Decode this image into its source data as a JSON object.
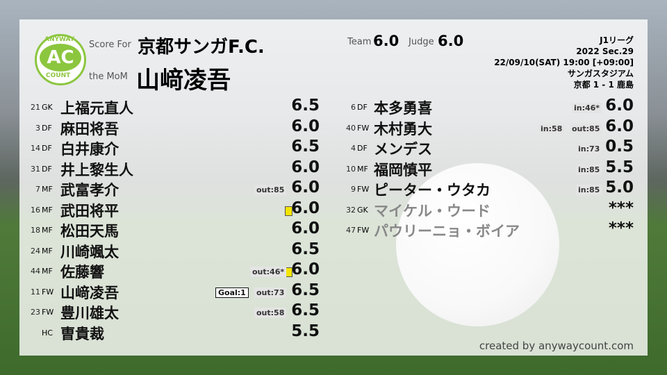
{
  "header": {
    "logo_top": "ANYWAY",
    "logo_mid": "AC",
    "logo_bottom": "COUNT",
    "score_for": "Score For",
    "team": "京都サンガF.C.",
    "mom_label": "the MoM",
    "mom": "山﨑凌吾",
    "team_label": "Team",
    "team_score": "6.0",
    "judge_label": "Judge",
    "judge_score": "6.0"
  },
  "match": {
    "league": "J1リーグ",
    "round": "2022 Sec.29",
    "datetime": "22/09/10(SAT) 19:00 [+09:00]",
    "venue": "サンガスタジアム",
    "result": "京都 1 - 1 鹿島"
  },
  "left_players": [
    {
      "number": "21",
      "pos": "GK",
      "name": "上福元直人",
      "score": "6.5"
    },
    {
      "number": "3",
      "pos": "DF",
      "name": "麻田将吾",
      "score": "6.0"
    },
    {
      "number": "14",
      "pos": "DF",
      "name": "白井康介",
      "score": "6.5"
    },
    {
      "number": "31",
      "pos": "DF",
      "name": "井上黎生人",
      "score": "6.0"
    },
    {
      "number": "7",
      "pos": "MF",
      "name": "武富孝介",
      "subs": [
        "out:85"
      ],
      "score": "6.0"
    },
    {
      "number": "16",
      "pos": "MF",
      "name": "武田将平",
      "yellow_card": true,
      "score": "6.0"
    },
    {
      "number": "18",
      "pos": "MF",
      "name": "松田天馬",
      "score": "6.0"
    },
    {
      "number": "24",
      "pos": "MF",
      "name": "川崎颯太",
      "score": "6.5"
    },
    {
      "number": "44",
      "pos": "MF",
      "name": "佐藤響",
      "subs": [
        "out:46*"
      ],
      "yellow_card": true,
      "score": "6.0"
    },
    {
      "number": "11",
      "pos": "FW",
      "name": "山﨑凌吾",
      "goal": "Goal:1",
      "subs": [
        "out:73"
      ],
      "score": "6.5"
    },
    {
      "number": "23",
      "pos": "FW",
      "name": "豊川雄太",
      "subs": [
        "out:58"
      ],
      "score": "6.5"
    },
    {
      "pos": "HC",
      "name": "曺貴裁",
      "score": "5.5"
    }
  ],
  "right_players": [
    {
      "number": "6",
      "pos": "DF",
      "name": "本多勇喜",
      "subs": [
        "in:46*"
      ],
      "score": "6.0"
    },
    {
      "number": "40",
      "pos": "FW",
      "name": "木村勇大",
      "subs": [
        "in:58",
        "out:85"
      ],
      "score": "6.0"
    },
    {
      "number": "4",
      "pos": "DF",
      "name": "メンデス",
      "subs": [
        "in:73"
      ],
      "score": "0.5"
    },
    {
      "number": "10",
      "pos": "MF",
      "name": "福岡慎平",
      "subs": [
        "in:85"
      ],
      "score": "5.5"
    },
    {
      "number": "9",
      "pos": "FW",
      "name": "ピーター・ウタカ",
      "subs": [
        "in:85"
      ],
      "score": "5.0"
    },
    {
      "number": "32",
      "pos": "GK",
      "name": "マイケル・ウード",
      "dimmed": true,
      "score": "***"
    },
    {
      "number": "47",
      "pos": "FW",
      "name": "パウリーニョ・ボイア",
      "dimmed": true,
      "score": "***"
    }
  ],
  "footer": "created by anywaycount.com"
}
